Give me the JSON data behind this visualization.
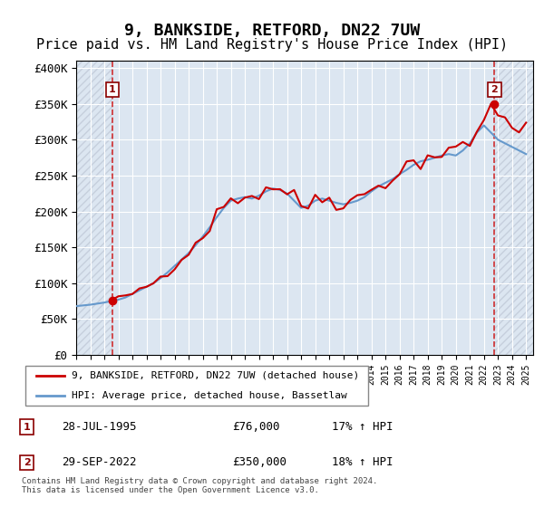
{
  "title": "9, BANKSIDE, RETFORD, DN22 7UW",
  "subtitle": "Price paid vs. HM Land Registry's House Price Index (HPI)",
  "ylabel": "",
  "ylim": [
    0,
    400000
  ],
  "yticks": [
    0,
    50000,
    100000,
    150000,
    200000,
    250000,
    300000,
    350000,
    400000
  ],
  "ytick_labels": [
    "£0",
    "£50K",
    "£100K",
    "£150K",
    "£200K",
    "£250K",
    "£300K",
    "£350K",
    "£400K"
  ],
  "hpi_color": "#6699cc",
  "price_color": "#cc0000",
  "marker1_date_idx": 2.5,
  "marker1_value": 76000,
  "marker2_date_idx": 29.5,
  "marker2_value": 350000,
  "annotation1": "28-JUL-1995    £76,000    17% ↑ HPI",
  "annotation2": "29-SEP-2022    £350,000    18% ↑ HPI",
  "legend_label1": "9, BANKSIDE, RETFORD, DN22 7UW (detached house)",
  "legend_label2": "HPI: Average price, detached house, Bassetlaw",
  "footnote": "Contains HM Land Registry data © Crown copyright and database right 2024.\nThis data is licensed under the Open Government Licence v3.0.",
  "background_color": "#dce6f1",
  "hatch_color": "#c0c8d8",
  "title_fontsize": 13,
  "subtitle_fontsize": 11
}
